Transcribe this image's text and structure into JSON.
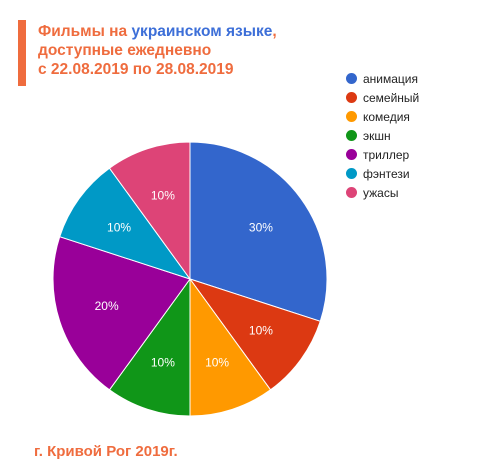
{
  "title": {
    "line1_part1": "Фильмы на ",
    "line1_part2": "украинском языке",
    "line1_part3": ",",
    "line2": "доступные ежедневно",
    "line3": "с 22.08.2019 по 28.08.2019"
  },
  "footer": "г. Кривой Рог 2019г.",
  "colors": {
    "accent": "#ef6c3e",
    "highlight": "#3d6fd8"
  },
  "chart_data": {
    "type": "pie",
    "legend_position": "right",
    "categories": [
      "анимация",
      "семейный",
      "комедия",
      "экшн",
      "триллер",
      "фэнтези",
      "ужасы"
    ],
    "values": [
      30,
      10,
      10,
      10,
      20,
      10,
      10
    ],
    "labels": [
      "30%",
      "10%",
      "10%",
      "10%",
      "20%",
      "10%",
      "10%"
    ],
    "colors": [
      "#3366cc",
      "#dc3912",
      "#ff9900",
      "#109618",
      "#990099",
      "#0099c6",
      "#dd4477"
    ]
  }
}
